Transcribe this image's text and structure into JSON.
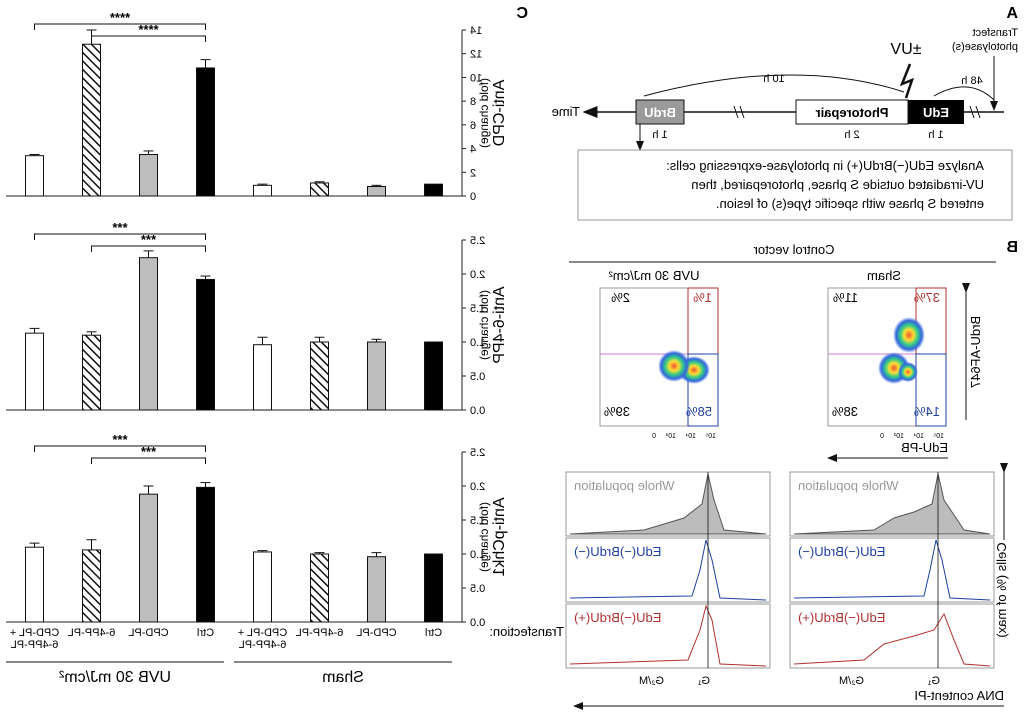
{
  "panel_labels": {
    "A": "A",
    "B": "B",
    "C": "C"
  },
  "panel_a": {
    "transfect_label_1": "Transfect",
    "transfect_label_2": "photolyase(s)",
    "uv_label": "±UV",
    "time_label": "Time",
    "int_10h": "10 h",
    "int_48h": "48 h",
    "brdu": "BrdU",
    "photorepair": "Photorepair",
    "edu": "EdU",
    "dur_brdu": "1 h",
    "dur_photorepair": "2 h",
    "dur_edu": "1 h",
    "analysis_lines": [
      "Analyze EdU(−)BrdU(+) in photolyase-expressing cells:",
      "UV-irradiated outside S phase, photorepaired, then",
      "entered S phase with specific type(s) of lesion."
    ]
  },
  "panel_b": {
    "control_vector": "Control vector",
    "sham": "Sham",
    "uvb": "UVB 30 mJ/cm²",
    "brdu_axis": "BrdU-AF647",
    "edu_axis": "EdU-PB",
    "sham_quadrants": {
      "ul": "11%",
      "ur": "37%",
      "ll": "38%",
      "lr": "14%"
    },
    "uvb_quadrants": {
      "ul": "2%",
      "ur": "1%",
      "ll": "39%",
      "lr": "58%"
    },
    "tick_labels": [
      "0",
      "10³",
      "10⁴",
      "10⁵"
    ],
    "hist_labels": [
      "Whole population",
      "EdU(−)BrdU(−)",
      "EdU(−)BrdU(+)"
    ],
    "cells_axis": "Cells (% of max)",
    "dna_axis": "DNA content-PI",
    "g1": "G₁",
    "g2m": "G₂/M"
  },
  "chart_data": [
    {
      "type": "bar",
      "title": "Anti-CPD",
      "ylabel": "Anti-CPD (fold change)",
      "ylim": [
        0,
        14
      ],
      "yticks": [
        "0",
        "2",
        "4",
        "6",
        "8",
        "10",
        "12",
        "14"
      ],
      "categories": [
        "Ctrl",
        "CPD-PL",
        "6-4PP-PL",
        "CPD-PL + 6-4PP-PL",
        "Ctrl",
        "CPD-PL",
        "6-4PP-PL",
        "CPD-PL + 6-4PP-PL"
      ],
      "groups": [
        "Sham",
        "Sham",
        "Sham",
        "Sham",
        "UVB 30 mJ/cm²",
        "UVB 30 mJ/cm²",
        "UVB 30 mJ/cm²",
        "UVB 30 mJ/cm²"
      ],
      "values": [
        1.0,
        0.8,
        1.1,
        0.9,
        10.8,
        3.5,
        12.8,
        3.4
      ],
      "errors": [
        0.0,
        0.1,
        0.1,
        0.1,
        0.7,
        0.3,
        1.2,
        0.1
      ],
      "significance": [
        {
          "from": 4,
          "to": 6,
          "label": "****"
        },
        {
          "from": 4,
          "to": 7,
          "label": "****"
        }
      ]
    },
    {
      "type": "bar",
      "title": "Anti-6-4PP",
      "ylabel": "Anti-6-4PP (fold change)",
      "ylim": [
        0,
        2.5
      ],
      "yticks": [
        "0.0",
        "0.5",
        "1.0",
        "1.5",
        "2.0",
        "2.5"
      ],
      "categories": [
        "Ctrl",
        "CPD-PL",
        "6-4PP-PL",
        "CPD-PL + 6-4PP-PL",
        "Ctrl",
        "CPD-PL",
        "6-4PP-PL",
        "CPD-PL + 6-4PP-PL"
      ],
      "groups": [
        "Sham",
        "Sham",
        "Sham",
        "Sham",
        "UVB 30 mJ/cm²",
        "UVB 30 mJ/cm²",
        "UVB 30 mJ/cm²",
        "UVB 30 mJ/cm²"
      ],
      "values": [
        1.0,
        1.0,
        1.0,
        0.96,
        1.92,
        2.24,
        1.1,
        1.13
      ],
      "errors": [
        0.0,
        0.04,
        0.07,
        0.11,
        0.05,
        0.1,
        0.05,
        0.07
      ],
      "significance": [
        {
          "from": 4,
          "to": 6,
          "label": "***"
        },
        {
          "from": 4,
          "to": 7,
          "label": "***"
        }
      ]
    },
    {
      "type": "bar",
      "title": "Anti-pChk1",
      "ylabel": "Anti-pChk1 (fold change)",
      "ylim": [
        0,
        2.5
      ],
      "yticks": [
        "0.0",
        "0.5",
        "1.0",
        "1.5",
        "2.0",
        "2.5"
      ],
      "categories": [
        "Ctrl",
        "CPD-PL",
        "6-4PP-PL",
        "CPD-PL + 6-4PP-PL",
        "Ctrl",
        "CPD-PL",
        "6-4PP-PL",
        "CPD-PL + 6-4PP-PL"
      ],
      "groups": [
        "Sham",
        "Sham",
        "Sham",
        "Sham",
        "UVB 30 mJ/cm²",
        "UVB 30 mJ/cm²",
        "UVB 30 mJ/cm²",
        "UVB 30 mJ/cm²"
      ],
      "values": [
        1.0,
        0.96,
        1.0,
        1.03,
        1.98,
        1.88,
        1.06,
        1.1
      ],
      "errors": [
        0.0,
        0.06,
        0.02,
        0.02,
        0.07,
        0.12,
        0.15,
        0.06
      ],
      "significance": [
        {
          "from": 4,
          "to": 6,
          "label": "***"
        },
        {
          "from": 4,
          "to": 7,
          "label": "***"
        }
      ]
    }
  ],
  "panel_c": {
    "transfection_label": "Transfection:",
    "x_labels": [
      "Ctrl",
      "CPD-PL",
      "6-4PP-PL",
      "CPD-PL + 6-4PP-PL",
      "Ctrl",
      "CPD-PL",
      "6-4PP-PL",
      "CPD-PL + 6-4PP-PL"
    ],
    "group_sham": "Sham",
    "group_uvb": "UVB 30 mJ/cm²"
  },
  "colors": {
    "ctrl": "#000000",
    "cpd": "#bdbdbd",
    "pp": "hatched",
    "both": "#ffffff",
    "quad_red": "#b03030",
    "quad_blue": "#2040a0",
    "hist_gray": "#bcbcbc"
  }
}
